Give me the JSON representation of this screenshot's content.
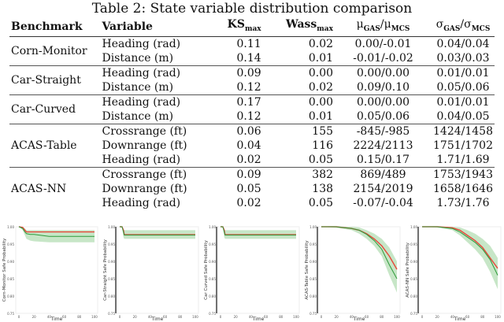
{
  "table": {
    "title": "Table 2: State variable distribution comparison",
    "headers": {
      "benchmark": "Benchmark",
      "variable": "Variable",
      "ks": "KS",
      "ks_sub": "max",
      "wass": "Wass",
      "wass_sub": "max",
      "mu": "μ",
      "mu_sub1": "GAS",
      "mu_mid": "/μ",
      "mu_sub2": "MCS",
      "sigma": "σ",
      "sigma_sub1": "GAS",
      "sigma_mid": "/σ",
      "sigma_sub2": "MCS"
    },
    "groups": [
      {
        "benchmark": "Corn-Monitor",
        "rows": [
          [
            "Heading (rad)",
            "0.11",
            "0.02",
            "0.00/-0.01",
            "0.04/0.04"
          ],
          [
            "Distance (m)",
            "0.14",
            "0.01",
            "-0.01/-0.02",
            "0.03/0.03"
          ]
        ]
      },
      {
        "benchmark": "Car-Straight",
        "rows": [
          [
            "Heading (rad)",
            "0.09",
            "0.00",
            "0.00/0.00",
            "0.01/0.01"
          ],
          [
            "Distance (m)",
            "0.12",
            "0.02",
            "0.09/0.10",
            "0.05/0.06"
          ]
        ]
      },
      {
        "benchmark": "Car-Curved",
        "rows": [
          [
            "Heading (rad)",
            "0.17",
            "0.00",
            "0.00/0.00",
            "0.01/0.01"
          ],
          [
            "Distance (m)",
            "0.12",
            "0.01",
            "0.05/0.06",
            "0.04/0.05"
          ]
        ]
      },
      {
        "benchmark": "ACAS-Table",
        "rows": [
          [
            "Crossrange (ft)",
            "0.06",
            "155",
            "-845/-985",
            "1424/1458"
          ],
          [
            "Downrange (ft)",
            "0.04",
            "116",
            "2224/2113",
            "1751/1702"
          ],
          [
            "Heading (rad)",
            "0.02",
            "0.05",
            "0.15/0.17",
            "1.71/1.69"
          ]
        ]
      },
      {
        "benchmark": "ACAS-NN",
        "rows": [
          [
            "Crossrange (ft)",
            "0.09",
            "382",
            "869/489",
            "1753/1943"
          ],
          [
            "Downrange (ft)",
            "0.05",
            "138",
            "2154/2019",
            "1658/1646"
          ],
          [
            "Heading (rad)",
            "0.02",
            "0.05",
            "-0.07/-0.04",
            "1.73/1.76"
          ]
        ]
      }
    ]
  },
  "colors": {
    "red": "#e8463a",
    "green": "#2e9a3a",
    "band_green": "#b9e0b9",
    "band_red": "#e0a08a"
  },
  "chart_data": [
    {
      "type": "line",
      "xlabel": "Time",
      "ylabel": "Corn-Monitor Safe Probability",
      "ylim": [
        0.75,
        1.0
      ],
      "yticks": [
        "1.00",
        "0.95",
        "0.90",
        "0.85",
        "0.80",
        "0.75"
      ],
      "xticks": [
        "0",
        "20",
        "40",
        "60",
        "80",
        "100"
      ],
      "x": [
        0,
        5,
        8,
        10,
        15,
        20,
        40,
        60,
        80,
        100
      ],
      "series": [
        {
          "color": "red",
          "values": [
            1,
            0.998,
            0.99,
            0.985,
            0.985,
            0.985,
            0.985,
            0.985,
            0.985,
            0.985
          ]
        },
        {
          "color": "green",
          "values": [
            1,
            0.995,
            0.985,
            0.98,
            0.978,
            0.978,
            0.972,
            0.972,
            0.972,
            0.972
          ]
        }
      ],
      "band_lower": [
        1,
        0.99,
        0.975,
        0.965,
        0.96,
        0.958,
        0.955,
        0.955,
        0.955,
        0.955
      ],
      "band_upper": [
        1,
        1,
        0.995,
        0.99,
        0.99,
        0.99,
        0.99,
        0.99,
        0.99,
        0.99
      ]
    },
    {
      "type": "line",
      "xlabel": "Time",
      "ylabel": "Car-Straight Safe Probability",
      "ylim": [
        0.75,
        1.0
      ],
      "yticks": [
        "1.00",
        "0.95",
        "0.90",
        "0.85",
        "0.80",
        "0.75"
      ],
      "xticks": [
        "0",
        "20",
        "40",
        "60",
        "80",
        "100"
      ],
      "x": [
        0,
        3,
        5,
        6,
        10,
        40,
        70,
        100
      ],
      "series": [
        {
          "color": "red",
          "values": [
            1,
            1,
            0.99,
            0.977,
            0.977,
            0.977,
            0.977,
            0.977
          ]
        },
        {
          "color": "green",
          "values": [
            1,
            1,
            0.985,
            0.976,
            0.976,
            0.976,
            0.976,
            0.976
          ]
        }
      ],
      "band_lower": [
        1,
        1,
        0.97,
        0.965,
        0.965,
        0.965,
        0.965,
        0.965
      ],
      "band_upper": [
        1,
        1,
        0.995,
        0.99,
        0.99,
        0.99,
        0.99,
        0.99
      ]
    },
    {
      "type": "line",
      "xlabel": "Time",
      "ylabel": "Car Curved Safe Probability",
      "ylim": [
        0.75,
        1.0
      ],
      "yticks": [
        "1.00",
        "0.95",
        "0.90",
        "0.85",
        "0.80",
        "0.75"
      ],
      "xticks": [
        "0",
        "20",
        "40",
        "60",
        "80",
        "100"
      ],
      "x": [
        0,
        3,
        5,
        6,
        10,
        40,
        70,
        100
      ],
      "series": [
        {
          "color": "red",
          "values": [
            1,
            1,
            0.99,
            0.977,
            0.977,
            0.977,
            0.977,
            0.977
          ]
        },
        {
          "color": "green",
          "values": [
            1,
            1,
            0.985,
            0.976,
            0.976,
            0.976,
            0.976,
            0.976
          ]
        }
      ],
      "band_lower": [
        1,
        1,
        0.97,
        0.965,
        0.965,
        0.965,
        0.965,
        0.965
      ],
      "band_upper": [
        1,
        1,
        0.995,
        0.99,
        0.99,
        0.99,
        0.99,
        0.99
      ]
    },
    {
      "type": "line",
      "xlabel": "Time",
      "ylabel": "ACAS-Table Safe Probability",
      "ylim": [
        0.75,
        1.0
      ],
      "yticks": [
        "1.00",
        "0.95",
        "0.90",
        "0.85",
        "0.80",
        "0.75"
      ],
      "xticks": [
        "0",
        "20",
        "40",
        "60",
        "80",
        "100"
      ],
      "x": [
        0,
        20,
        40,
        50,
        60,
        70,
        80,
        90,
        100
      ],
      "series": [
        {
          "color": "red",
          "values": [
            1,
            1,
            0.995,
            0.99,
            0.98,
            0.965,
            0.945,
            0.915,
            0.877
          ]
        },
        {
          "color": "green",
          "values": [
            1,
            1,
            0.995,
            0.99,
            0.978,
            0.96,
            0.935,
            0.89,
            0.85
          ]
        }
      ],
      "band_lower": [
        1,
        0.997,
        0.99,
        0.98,
        0.965,
        0.945,
        0.915,
        0.86,
        0.81
      ],
      "band_upper": [
        1,
        1,
        1,
        0.998,
        0.99,
        0.98,
        0.965,
        0.94,
        0.9
      ]
    },
    {
      "type": "line",
      "xlabel": "Time",
      "ylabel": "ACAS-NN Safe Probability",
      "ylim": [
        0.75,
        1.0
      ],
      "yticks": [
        "1.00",
        "0.95",
        "0.90",
        "0.85",
        "0.80",
        "0.75"
      ],
      "xticks": [
        "0",
        "20",
        "40",
        "60",
        "80",
        "100"
      ],
      "x": [
        0,
        20,
        40,
        50,
        60,
        70,
        80,
        90,
        100
      ],
      "series": [
        {
          "color": "red",
          "values": [
            1,
            1,
            0.997,
            0.99,
            0.975,
            0.96,
            0.94,
            0.91,
            0.88
          ]
        },
        {
          "color": "green",
          "values": [
            1,
            1,
            0.995,
            0.985,
            0.97,
            0.955,
            0.935,
            0.905,
            0.86
          ]
        }
      ],
      "band_lower": [
        1,
        0.998,
        0.99,
        0.975,
        0.955,
        0.935,
        0.91,
        0.87,
        0.82
      ],
      "band_upper": [
        1,
        1,
        1,
        0.998,
        0.99,
        0.98,
        0.965,
        0.945,
        0.91
      ]
    }
  ]
}
